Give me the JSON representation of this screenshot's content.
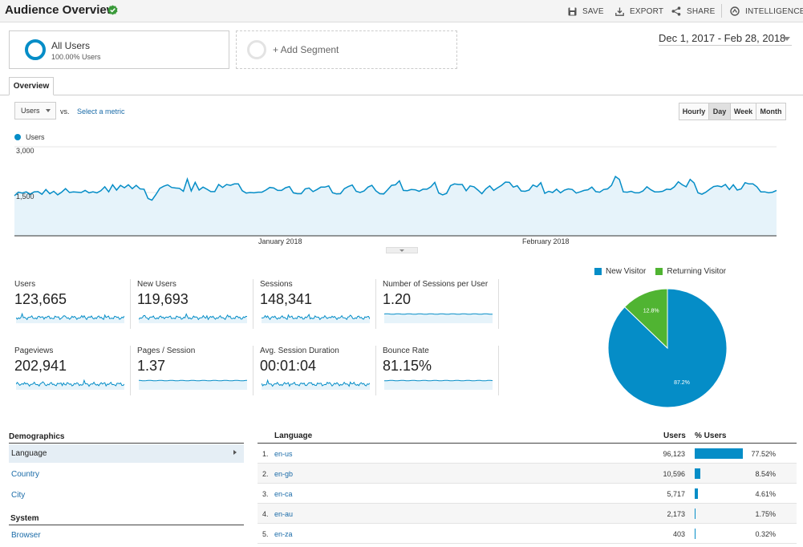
{
  "header": {
    "title": "Audience Overview",
    "actions": [
      {
        "label": "SAVE",
        "icon": "save-icon"
      },
      {
        "label": "EXPORT",
        "icon": "export-icon"
      },
      {
        "label": "SHARE",
        "icon": "share-icon"
      },
      {
        "label": "INTELLIGENCE",
        "icon": "intelligence-icon"
      }
    ]
  },
  "segments": {
    "all_users_name": "All Users",
    "all_users_pct": "100.00% Users",
    "add_label": "+ Add Segment"
  },
  "date_range": "Dec 1, 2017 - Feb 28, 2018",
  "tabs": [
    "Overview"
  ],
  "controls": {
    "metric": "Users",
    "vs": "vs.",
    "select_metric": "Select a metric",
    "granularity": [
      "Hourly",
      "Day",
      "Week",
      "Month"
    ],
    "granularity_active": "Day"
  },
  "colors": {
    "primary": "#058dc7",
    "secondary": "#50b432",
    "link": "#1a6ba8"
  },
  "chart_data": {
    "type": "area",
    "series_name": "Users",
    "y_ticks": [
      "3,000",
      "1,500"
    ],
    "x_labels": [
      "January 2018",
      "February 2018"
    ],
    "values": [
      1350,
      1470,
      1440,
      1480,
      1400,
      1480,
      1490,
      1400,
      1560,
      1420,
      1500,
      1380,
      1470,
      1590,
      1460,
      1480,
      1470,
      1460,
      1530,
      1450,
      1480,
      1450,
      1520,
      1650,
      1480,
      1720,
      1540,
      1700,
      1620,
      1720,
      1590,
      1700,
      1580,
      1570,
      1260,
      1200,
      1390,
      1600,
      1670,
      1720,
      1630,
      1610,
      1600,
      1500,
      1910,
      1510,
      1800,
      1540,
      1640,
      1570,
      1490,
      1490,
      1730,
      1630,
      1730,
      1700,
      1750,
      1750,
      1520,
      1440,
      1460,
      1450,
      1470,
      1470,
      1540,
      1630,
      1610,
      1530,
      1530,
      1620,
      1660,
      1450,
      1420,
      1420,
      1580,
      1610,
      1490,
      1560,
      1640,
      1640,
      1680,
      1450,
      1410,
      1420,
      1590,
      1660,
      1710,
      1500,
      1460,
      1510,
      1640,
      1700,
      1520,
      1420,
      1410,
      1550,
      1700,
      1720,
      1850,
      1530,
      1520,
      1560,
      1550,
      1500,
      1570,
      1570,
      1650,
      1800,
      1440,
      1380,
      1430,
      1690,
      1750,
      1730,
      1730,
      1520,
      1680,
      1650,
      1540,
      1420,
      1580,
      1680,
      1530,
      1620,
      1700,
      1810,
      1800,
      1640,
      1690,
      1510,
      1500,
      1540,
      1710,
      1650,
      1790,
      1430,
      1500,
      1460,
      1570,
      1450,
      1540,
      1580,
      1560,
      1440,
      1480,
      1530,
      1550,
      1640,
      1490,
      1470,
      1560,
      1580,
      1700,
      2000,
      1900,
      1480,
      1470,
      1500,
      1450,
      1450,
      1510,
      1650,
      1550,
      1480,
      1480,
      1500,
      1570,
      1560,
      1650,
      1820,
      1720,
      1650,
      1900,
      1780,
      1450,
      1400,
      1470,
      1570,
      1660,
      1680,
      1650,
      1730,
      1560,
      1720,
      1540,
      1580,
      1790,
      1750,
      1750,
      1650,
      1480,
      1480,
      1450,
      1470,
      1530
    ]
  },
  "metrics": [
    {
      "name": "Users",
      "value": "123,665"
    },
    {
      "name": "New Users",
      "value": "119,693"
    },
    {
      "name": "Sessions",
      "value": "148,341"
    },
    {
      "name": "Number of Sessions per User",
      "value": "1.20"
    },
    {
      "name": "Pageviews",
      "value": "202,941"
    },
    {
      "name": "Pages / Session",
      "value": "1.37"
    },
    {
      "name": "Avg. Session Duration",
      "value": "00:01:04"
    },
    {
      "name": "Bounce Rate",
      "value": "81.15%"
    }
  ],
  "pie": {
    "legend": [
      "New Visitor",
      "Returning Visitor"
    ],
    "slices": [
      {
        "name": "New Visitor",
        "value": 87.2,
        "label": "87.2%",
        "color": "#058dc7"
      },
      {
        "name": "Returning Visitor",
        "value": 12.8,
        "label": "12.8%",
        "color": "#50b432"
      }
    ]
  },
  "demographics": {
    "heading": "Demographics",
    "items": [
      "Language",
      "Country",
      "City"
    ],
    "system_heading": "System",
    "system_items": [
      "Browser"
    ]
  },
  "language_table": {
    "headers": {
      "language": "Language",
      "users": "Users",
      "pct": "% Users"
    },
    "rows": [
      {
        "idx": "1.",
        "lang": "en-us",
        "users": "96,123",
        "pct": "77.52%",
        "share": 77.52
      },
      {
        "idx": "2.",
        "lang": "en-gb",
        "users": "10,596",
        "pct": "8.54%",
        "share": 8.54
      },
      {
        "idx": "3.",
        "lang": "en-ca",
        "users": "5,717",
        "pct": "4.61%",
        "share": 4.61
      },
      {
        "idx": "4.",
        "lang": "en-au",
        "users": "2,173",
        "pct": "1.75%",
        "share": 1.75
      },
      {
        "idx": "5.",
        "lang": "en-za",
        "users": "403",
        "pct": "0.32%",
        "share": 0.32
      }
    ]
  }
}
